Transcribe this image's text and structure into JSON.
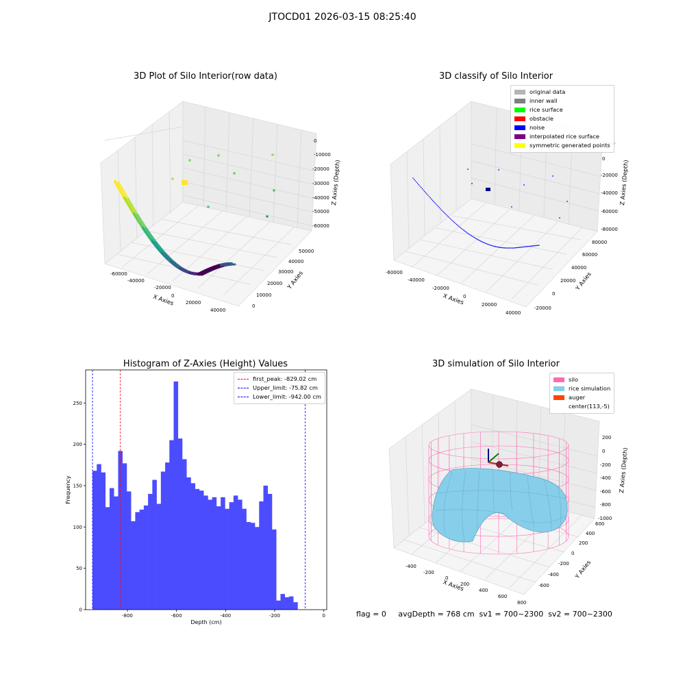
{
  "suptitle": "JTOCD01 2026-03-15 08:25:40",
  "footer": "flag = 0     avgDepth = 768 cm  sv1 = 700~2300  sv2 = 700~2300",
  "colors": {
    "hist_bar": "#4c4cff",
    "peak_line": "#ff0000",
    "limit_line": "#0000ff",
    "pane": "#f2f2f2",
    "grid": "#d9d9d9",
    "silo": "#ff69b4",
    "rice": "#87ceeb",
    "auger": "#ff4500"
  },
  "chart_data": [
    {
      "type": "scatter",
      "panel": "raw",
      "title": "3D Plot of Silo Interior(row data)",
      "xlabel": "X Axies",
      "ylabel": "Y Axies",
      "zlabel": "Z Axies (Depth)",
      "x_ticks": [
        "-60000",
        "-40000",
        "-20000",
        "0",
        "20000",
        "40000"
      ],
      "y_ticks": [
        "0",
        "10000",
        "20000",
        "30000",
        "40000",
        "50000"
      ],
      "z_ticks": [
        "0",
        "-10000",
        "-20000",
        "-30000",
        "-40000",
        "-50000",
        "-60000"
      ],
      "colormap": "viridis",
      "arc_points": {
        "x_range": [
          -62000,
          45000
        ],
        "y_range": [
          0,
          52000
        ],
        "description": "curved wall trace"
      }
    },
    {
      "type": "scatter",
      "panel": "classified",
      "title": "3D classify of Silo Interior",
      "xlabel": "X Axies",
      "ylabel": "Y Axies",
      "zlabel": "Z Axies (Depth)",
      "x_ticks": [
        "-60000",
        "-40000",
        "-20000",
        "0",
        "20000",
        "40000"
      ],
      "y_ticks": [
        "-20000",
        "0",
        "20000",
        "40000",
        "60000",
        "80000"
      ],
      "z_ticks": [
        "0",
        "-20000",
        "-40000",
        "-60000",
        "-80000"
      ],
      "z_ticks_partial": [
        "0000"
      ],
      "legend": [
        {
          "label": "original data",
          "color": "#b4b4b4"
        },
        {
          "label": "inner wall",
          "color": "#808080"
        },
        {
          "label": "rice surface",
          "color": "#00ff00"
        },
        {
          "label": "obstacle",
          "color": "#ff0000"
        },
        {
          "label": "noise",
          "color": "#0000ff"
        },
        {
          "label": "interpolated rice surface",
          "color": "#800080"
        },
        {
          "label": "symmetric generated points",
          "color": "#ffff00"
        }
      ]
    },
    {
      "type": "bar",
      "panel": "histogram",
      "title": "Histogram of Z-Axies (Height) Values",
      "xlabel": "Depth (cm)",
      "ylabel": "Frequency",
      "xlim": [
        -970,
        12
      ],
      "ylim": [
        0,
        290
      ],
      "x_ticks": [
        -800,
        -600,
        -400,
        -200,
        0
      ],
      "y_ticks": [
        0,
        50,
        100,
        150,
        200,
        250
      ],
      "bin_start": -942,
      "bin_width": 17.4,
      "values": [
        168,
        176,
        166,
        124,
        147,
        137,
        192,
        177,
        143,
        107,
        118,
        121,
        126,
        140,
        157,
        128,
        167,
        178,
        205,
        276,
        207,
        182,
        160,
        153,
        146,
        144,
        138,
        133,
        136,
        125,
        136,
        122,
        130,
        138,
        133,
        122,
        106,
        105,
        100,
        131,
        150,
        140,
        97,
        11,
        19,
        15,
        16,
        9
      ],
      "vlines": [
        {
          "label": "first_peak: -829.02 cm",
          "x": -829.02,
          "color": "#ff0000"
        },
        {
          "label": "Upper_limit: -75.82 cm",
          "x": -75.82,
          "color": "#0000ff"
        },
        {
          "label": "Lower_limit: -942.00 cm",
          "x": -942.0,
          "color": "#0000ff"
        }
      ]
    },
    {
      "type": "surface",
      "panel": "simulation",
      "title": "3D simulation of Silo Interior",
      "xlabel": "X Axies",
      "ylabel": "Y Axies",
      "zlabel": "Z Axies (Depth)",
      "x_ticks": [
        "-400",
        "-200",
        "0",
        "200",
        "400",
        "600",
        "800"
      ],
      "y_ticks": [
        "-600",
        "-400",
        "-200",
        "0",
        "200",
        "400",
        "600"
      ],
      "z_ticks": [
        "200",
        "0",
        "-200",
        "-400",
        "-600",
        "-800",
        "-1000"
      ],
      "legend": [
        {
          "label": "silo",
          "color": "#ff69b4"
        },
        {
          "label": "rice simulation",
          "color": "#87ceeb"
        },
        {
          "label": "auger",
          "color": "#ff4500"
        },
        {
          "label": "center(113,-5)",
          "color": ""
        }
      ]
    }
  ]
}
